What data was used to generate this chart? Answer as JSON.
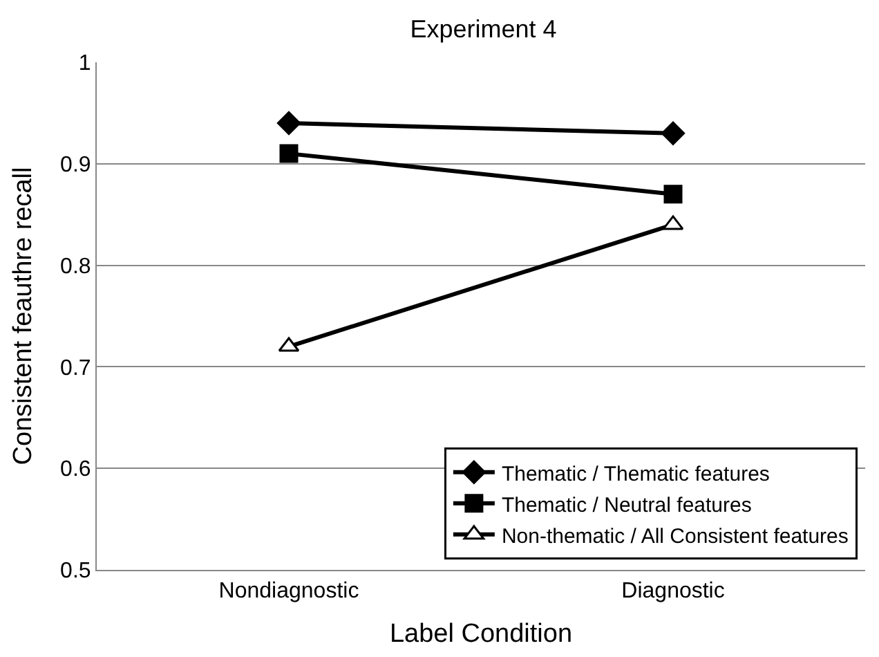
{
  "chart_data": {
    "type": "line",
    "title": "Experiment 4",
    "xlabel": "Label Condition",
    "ylabel": "Consistent feauthre recall",
    "categories": [
      "Nondiagnostic",
      "Diagnostic"
    ],
    "series": [
      {
        "name": "Thematic / Thematic features",
        "color": "#000000",
        "marker": "diamond",
        "values": [
          0.94,
          0.93
        ]
      },
      {
        "name": "Thematic / Neutral features",
        "color": "#000000",
        "marker": "square",
        "values": [
          0.91,
          0.87
        ]
      },
      {
        "name": "Non-thematic / All Consistent features",
        "color": "#000000",
        "marker": "triangle",
        "values": [
          0.72,
          0.84
        ]
      }
    ],
    "ylim": [
      0.5,
      1
    ],
    "yticks": [
      0.5,
      0.6,
      0.7,
      0.8,
      0.9,
      1
    ],
    "grid": "y",
    "legend": "bottom right",
    "line_style": "solid"
  }
}
